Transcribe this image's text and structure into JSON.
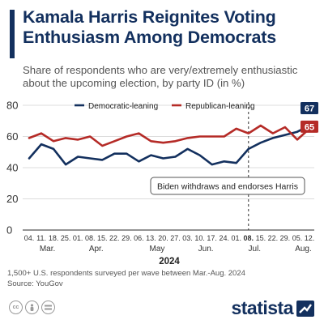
{
  "header": {
    "title": "Kamala Harris Reignites Voting Enthusiasm Among Democrats",
    "subtitle": "Share of respondents who are very/extremely enthusiastic about the upcoming election, by party ID (in %)"
  },
  "footer": {
    "note": "1,500+ U.S. respondents surveyed per wave between Mar.-Aug. 2024",
    "source": "Source: YouGov",
    "brand": "statista",
    "license_icons": [
      "cc-icon",
      "person-icon",
      "no-derivatives-icon"
    ]
  },
  "colors": {
    "democratic": "#13305e",
    "republican": "#b52b27",
    "grid": "#dcdcdc",
    "text": "#333333"
  },
  "chart_data": {
    "type": "line",
    "title": "Kamala Harris Reignites Voting Enthusiasm Among Democrats",
    "x_tick_labels": [
      "04.",
      "11.",
      "18.",
      "25.",
      "01.",
      "08.",
      "15.",
      "22.",
      "29.",
      "06.",
      "13.",
      "20.",
      "27.",
      "03.",
      "10.",
      "17.",
      "24.",
      "01.",
      "08.",
      "15.",
      "22.",
      "29.",
      "05.",
      "12."
    ],
    "highlighted_tick": "22.",
    "month_labels": [
      {
        "label": "Mar.",
        "index": 1.5
      },
      {
        "label": "Apr.",
        "index": 5.5
      },
      {
        "label": "May",
        "index": 10.5
      },
      {
        "label": "Jun.",
        "index": 14.5
      },
      {
        "label": "Jul.",
        "index": 18.5
      },
      {
        "label": "Aug.",
        "index": 22.5
      }
    ],
    "year_label": "2024",
    "ylim": [
      0,
      80
    ],
    "y_ticks": [
      0,
      20,
      40,
      60,
      80
    ],
    "grid": true,
    "legend_position": "top",
    "series": [
      {
        "name": "Democratic-leaning",
        "color": "#13305e",
        "values": [
          46,
          55,
          52,
          42,
          47,
          46,
          45,
          49,
          49,
          44,
          48,
          46,
          47,
          52,
          48,
          42,
          44,
          43,
          52,
          56,
          59,
          61,
          63,
          67
        ],
        "end_label": "67"
      },
      {
        "name": "Republican-leaning",
        "color": "#b52b27",
        "values": [
          59,
          62,
          57,
          59,
          58,
          60,
          54,
          57,
          60,
          62,
          57,
          56,
          57,
          59,
          60,
          60,
          60,
          65,
          62,
          67,
          62,
          66,
          58,
          65
        ],
        "end_label": "65"
      }
    ],
    "annotation": {
      "text": "Biden withdraws and endorses Harris",
      "at_index": 18
    }
  }
}
